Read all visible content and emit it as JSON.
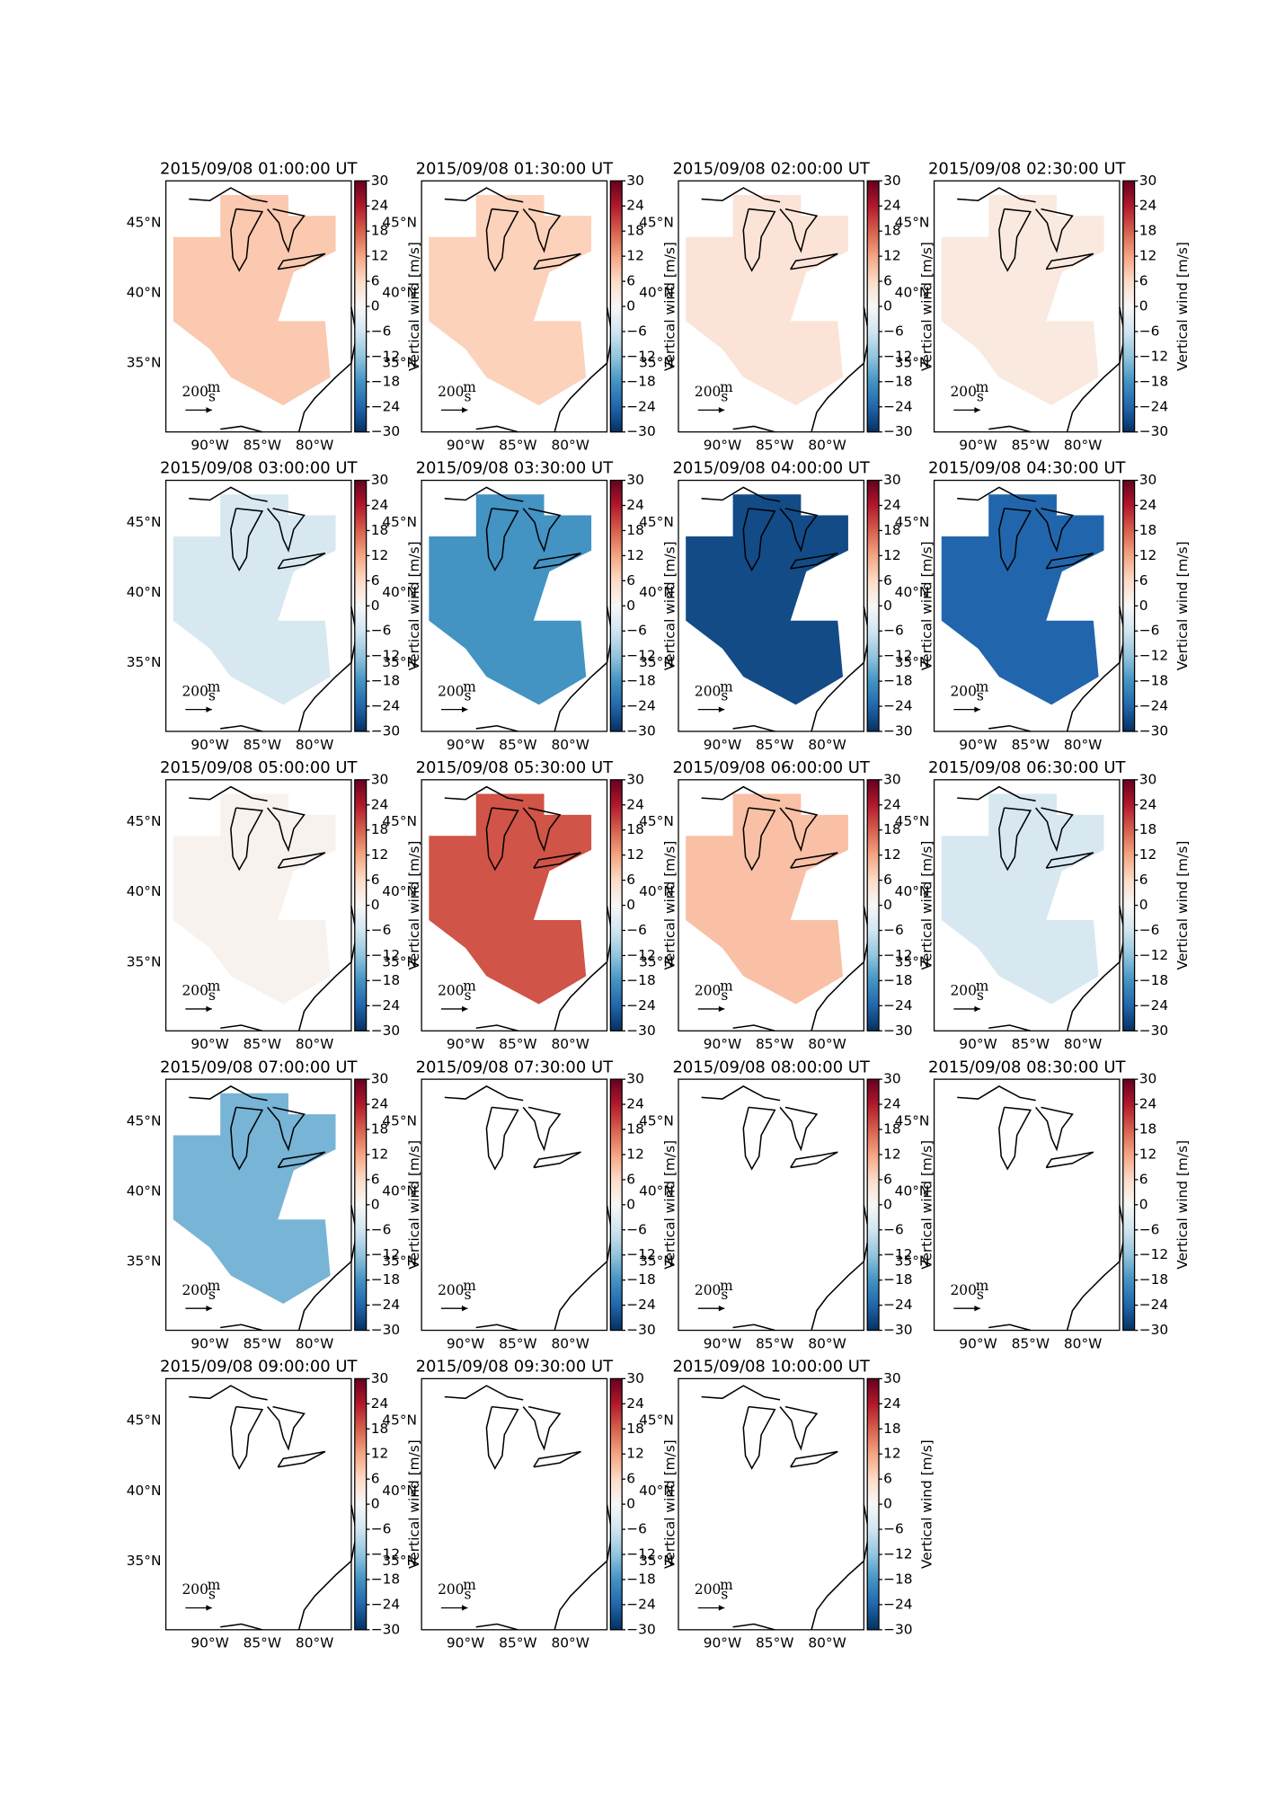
{
  "chart_data": [
    {
      "type": "map",
      "title": "2015/09/08 01:00:00 UT",
      "value": 8
    },
    {
      "type": "map",
      "title": "2015/09/08 01:30:00 UT",
      "value": 7
    },
    {
      "type": "map",
      "title": "2015/09/08 02:00:00 UT",
      "value": 4
    },
    {
      "type": "map",
      "title": "2015/09/08 02:30:00 UT",
      "value": 3
    },
    {
      "type": "map",
      "title": "2015/09/08 03:00:00 UT",
      "value": -5
    },
    {
      "type": "map",
      "title": "2015/09/08 03:30:00 UT",
      "value": -18
    },
    {
      "type": "map",
      "title": "2015/09/08 04:00:00 UT",
      "value": -27
    },
    {
      "type": "map",
      "title": "2015/09/08 04:30:00 UT",
      "value": -24
    },
    {
      "type": "map",
      "title": "2015/09/08 05:00:00 UT",
      "value": 1
    },
    {
      "type": "map",
      "title": "2015/09/08 05:30:00 UT",
      "value": 19
    },
    {
      "type": "map",
      "title": "2015/09/08 06:00:00 UT",
      "value": 9
    },
    {
      "type": "map",
      "title": "2015/09/08 06:30:00 UT",
      "value": -5
    },
    {
      "type": "map",
      "title": "2015/09/08 07:00:00 UT",
      "value": -14
    },
    {
      "type": "map",
      "title": "2015/09/08 07:30:00 UT",
      "value": null
    },
    {
      "type": "map",
      "title": "2015/09/08 08:00:00 UT",
      "value": null
    },
    {
      "type": "map",
      "title": "2015/09/08 08:30:00 UT",
      "value": null
    },
    {
      "type": "map",
      "title": "2015/09/08 09:00:00 UT",
      "value": null
    },
    {
      "type": "map",
      "title": "2015/09/08 09:30:00 UT",
      "value": null
    },
    {
      "type": "map",
      "title": "2015/09/08 10:00:00 UT",
      "value": null
    }
  ],
  "map_axes": {
    "xlim": [
      -94.2,
      -76.5
    ],
    "ylim": [
      30.1,
      48
    ],
    "xticks": [
      {
        "value": -90,
        "label": "90°W"
      },
      {
        "value": -85,
        "label": "85°W"
      },
      {
        "value": -80,
        "label": "80°W"
      }
    ],
    "yticks": [
      {
        "value": 35,
        "label": "35°N"
      },
      {
        "value": 40,
        "label": "40°N"
      },
      {
        "value": 45,
        "label": "45°N"
      }
    ],
    "quiver_key": {
      "value": 200,
      "unit_top": "m",
      "unit_bottom": "s"
    }
  },
  "colorbar": {
    "label": "Vertical wind [m/s]",
    "clim": [
      -30,
      30
    ],
    "colormap": "RdBu_r",
    "ticks": [
      30,
      24,
      18,
      12,
      6,
      0,
      {
        "value": -6,
        "label": "−6"
      },
      {
        "value": -12,
        "label": "−12"
      },
      {
        "value": -18,
        "label": "−18"
      },
      {
        "value": -24,
        "label": "−24"
      },
      {
        "value": -30,
        "label": "−30"
      }
    ]
  }
}
